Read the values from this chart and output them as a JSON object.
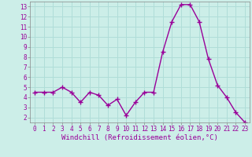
{
  "x": [
    0,
    1,
    2,
    3,
    4,
    5,
    6,
    7,
    8,
    9,
    10,
    11,
    12,
    13,
    14,
    15,
    16,
    17,
    18,
    19,
    20,
    21,
    22,
    23
  ],
  "y": [
    4.5,
    4.5,
    4.5,
    5.0,
    4.5,
    3.5,
    4.5,
    4.2,
    3.2,
    3.8,
    2.2,
    3.5,
    4.5,
    4.5,
    8.5,
    11.5,
    13.2,
    13.2,
    11.5,
    7.8,
    5.2,
    4.0,
    2.5,
    1.5
  ],
  "line_color": "#990099",
  "marker": "+",
  "marker_size": 4,
  "marker_color": "#990099",
  "background_color": "#cceee8",
  "grid_color": "#b0ddd8",
  "xlabel": "Windchill (Refroidissement éolien,°C)",
  "ylim": [
    1.5,
    13.5
  ],
  "xlim": [
    -0.5,
    23.5
  ],
  "yticks": [
    2,
    3,
    4,
    5,
    6,
    7,
    8,
    9,
    10,
    11,
    12,
    13
  ],
  "xticks": [
    0,
    1,
    2,
    3,
    4,
    5,
    6,
    7,
    8,
    9,
    10,
    11,
    12,
    13,
    14,
    15,
    16,
    17,
    18,
    19,
    20,
    21,
    22,
    23
  ],
  "tick_fontsize": 5.5,
  "xlabel_fontsize": 6.5,
  "line_width": 1.0,
  "tick_color": "#990099",
  "xlabel_color": "#990099"
}
